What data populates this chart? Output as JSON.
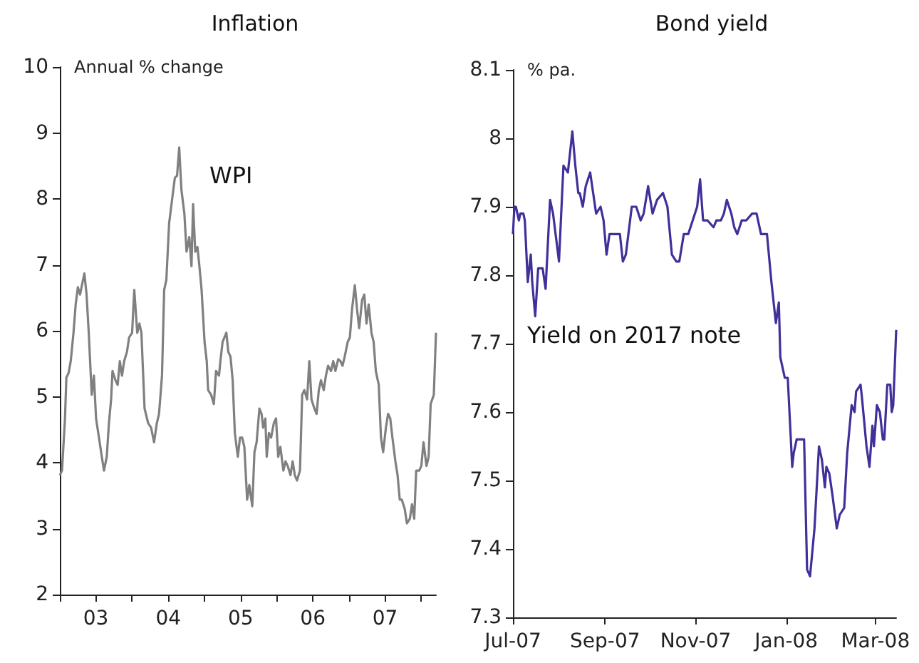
{
  "chart_data": [
    {
      "type": "line",
      "title": "Inflation",
      "ylabel": "Annual % change",
      "color": "#808080",
      "x": [
        "2003-01-01",
        "2003-01-12",
        "2003-01-27",
        "2003-02-03",
        "2003-02-14",
        "2003-02-25",
        "2003-03-11",
        "2003-03-22",
        "2003-04-02",
        "2003-04-13",
        "2003-04-28",
        "2003-05-05",
        "2003-05-16",
        "2003-05-27",
        "2003-06-11",
        "2003-06-22",
        "2003-07-03",
        "2003-07-21",
        "2003-08-01",
        "2003-08-12",
        "2003-08-26",
        "2003-09-06",
        "2003-09-17",
        "2003-09-24",
        "2003-10-09",
        "2003-10-20",
        "2003-10-31",
        "2003-11-11",
        "2003-11-22",
        "2003-12-06",
        "2003-12-17",
        "2004-01-01",
        "2004-01-12",
        "2004-01-27",
        "2004-02-07",
        "2004-02-17",
        "2004-03-04",
        "2004-03-22",
        "2004-04-06",
        "2004-04-21",
        "2004-05-05",
        "2004-05-16",
        "2004-05-31",
        "2004-06-11",
        "2004-06-22",
        "2004-07-06",
        "2004-07-21",
        "2004-08-04",
        "2004-08-15",
        "2004-08-26",
        "2004-09-06",
        "2004-09-21",
        "2004-10-02",
        "2004-10-16",
        "2004-10-27",
        "2004-11-04",
        "2004-11-15",
        "2004-11-26",
        "2004-12-06",
        "2004-12-17",
        "2005-01-01",
        "2005-01-12",
        "2005-01-19",
        "2005-02-03",
        "2005-02-17",
        "2005-02-28",
        "2005-03-15",
        "2005-03-22",
        "2005-04-02",
        "2005-04-21",
        "2005-05-01",
        "2005-05-12",
        "2005-05-23",
        "2005-06-03",
        "2005-06-18",
        "2005-06-29",
        "2005-07-10",
        "2005-07-21",
        "2005-08-04",
        "2005-08-15",
        "2005-08-30",
        "2005-09-10",
        "2005-09-21",
        "2005-10-05",
        "2005-10-16",
        "2005-10-24",
        "2005-11-04",
        "2005-11-11",
        "2005-11-22",
        "2005-12-03",
        "2005-12-17",
        "2005-12-28",
        "2006-01-08",
        "2006-01-19",
        "2006-02-03",
        "2006-02-14",
        "2006-02-25",
        "2006-03-11",
        "2006-03-22",
        "2006-04-02",
        "2006-04-13",
        "2006-04-28",
        "2006-05-09",
        "2006-05-20",
        "2006-06-03",
        "2006-06-14",
        "2006-06-25",
        "2006-07-10",
        "2006-07-21",
        "2006-08-01",
        "2006-08-12",
        "2006-08-26",
        "2006-09-06",
        "2006-09-17",
        "2006-10-02",
        "2006-10-13",
        "2006-10-24",
        "2006-11-07",
        "2006-11-18",
        "2006-11-29",
        "2006-12-10",
        "2006-12-25",
        "2007-01-05",
        "2007-01-16",
        "2007-01-30",
        "2007-02-10",
        "2007-02-21",
        "2007-03-08",
        "2007-03-19",
        "2007-03-30",
        "2007-04-10",
        "2007-04-24",
        "2007-05-05",
        "2007-05-16",
        "2007-05-31",
        "2007-06-11",
        "2007-06-22",
        "2007-07-06",
        "2007-07-17",
        "2007-07-28",
        "2007-08-08",
        "2007-08-23",
        "2007-09-03",
        "2007-09-14",
        "2007-09-24",
        "2007-10-09",
        "2007-10-20",
        "2007-11-04",
        "2007-11-15",
        "2007-11-26",
        "2007-12-06",
        "2007-12-21",
        "2008-01-01",
        "2008-01-12",
        "2008-01-27",
        "2008-02-07",
        "2008-02-17",
        "2008-03-04",
        "2008-03-15"
      ],
      "values": [
        3.81,
        3.88,
        4.67,
        5.29,
        5.36,
        5.54,
        5.97,
        6.4,
        6.66,
        6.55,
        6.77,
        6.87,
        6.55,
        5.97,
        5.03,
        5.32,
        4.67,
        4.31,
        4.09,
        3.88,
        4.09,
        4.6,
        4.96,
        5.39,
        5.25,
        5.18,
        5.54,
        5.32,
        5.54,
        5.68,
        5.9,
        5.97,
        6.62,
        5.97,
        6.11,
        5.97,
        4.82,
        4.6,
        4.53,
        4.31,
        4.6,
        4.74,
        5.32,
        6.62,
        6.77,
        7.63,
        7.99,
        8.32,
        8.35,
        8.78,
        8.14,
        7.78,
        7.2,
        7.42,
        6.98,
        7.92,
        7.2,
        7.27,
        6.98,
        6.62,
        5.83,
        5.54,
        5.1,
        5.03,
        4.89,
        5.39,
        5.32,
        5.54,
        5.83,
        5.97,
        5.68,
        5.61,
        5.25,
        4.45,
        4.09,
        4.38,
        4.38,
        4.24,
        3.44,
        3.66,
        3.34,
        4.16,
        4.31,
        4.82,
        4.74,
        4.53,
        4.67,
        4.09,
        4.45,
        4.38,
        4.6,
        4.67,
        4.09,
        4.24,
        3.88,
        4.02,
        3.95,
        3.81,
        4.02,
        3.81,
        3.73,
        3.88,
        5.03,
        5.1,
        4.96,
        5.54,
        4.96,
        4.82,
        4.74,
        5.1,
        5.25,
        5.1,
        5.32,
        5.47,
        5.39,
        5.54,
        5.39,
        5.57,
        5.54,
        5.47,
        5.61,
        5.83,
        5.9,
        6.33,
        6.69,
        6.33,
        6.04,
        6.47,
        6.55,
        6.11,
        6.4,
        5.97,
        5.83,
        5.39,
        5.18,
        4.38,
        4.16,
        4.53,
        4.74,
        4.67,
        4.38,
        4.02,
        3.81,
        3.44,
        3.44,
        3.3,
        3.08,
        3.15,
        3.37,
        3.15,
        3.88,
        3.88,
        3.95,
        4.31,
        3.95,
        4.09,
        4.89,
        5.03,
        5.97
      ],
      "xlim": [
        "2003-01-01",
        "2008-03-15"
      ],
      "xticks": [
        {
          "value": "2003-01-01",
          "label": null
        },
        {
          "value": "2004-01-01",
          "label": null
        },
        {
          "value": "2005-01-01",
          "label": null
        },
        {
          "value": "2006-01-01",
          "label": null
        },
        {
          "value": "2007-01-01",
          "label": null
        },
        {
          "value": "2008-01-01",
          "label": null
        },
        {
          "value": "2003-07-02",
          "label": "03"
        },
        {
          "value": "2004-07-02",
          "label": "04"
        },
        {
          "value": "2005-07-02",
          "label": "05"
        },
        {
          "value": "2006-07-02",
          "label": "06"
        },
        {
          "value": "2007-07-02",
          "label": "07"
        }
      ],
      "ylim": [
        2,
        10
      ],
      "yticks": [
        2,
        3,
        4,
        5,
        6,
        7,
        8,
        9,
        10
      ],
      "annotations": [
        "WPI"
      ]
    },
    {
      "type": "line",
      "title": "Bond yield",
      "ylabel": "% pa.",
      "color": "#40309a",
      "x": [
        "2007-07-01",
        "2007-07-02",
        "2007-07-03",
        "2007-07-05",
        "2007-07-06",
        "2007-07-08",
        "2007-07-09",
        "2007-07-11",
        "2007-07-13",
        "2007-07-14",
        "2007-07-16",
        "2007-07-18",
        "2007-07-21",
        "2007-07-23",
        "2007-07-26",
        "2007-07-28",
        "2007-08-01",
        "2007-08-04",
        "2007-08-07",
        "2007-08-10",
        "2007-08-12",
        "2007-08-14",
        "2007-08-15",
        "2007-08-17",
        "2007-08-19",
        "2007-08-22",
        "2007-08-26",
        "2007-08-29",
        "2007-08-31",
        "2007-09-02",
        "2007-09-04",
        "2007-09-07",
        "2007-09-11",
        "2007-09-13",
        "2007-09-15",
        "2007-09-19",
        "2007-09-22",
        "2007-09-25",
        "2007-09-27",
        "2007-09-30",
        "2007-10-03",
        "2007-10-06",
        "2007-10-10",
        "2007-10-13",
        "2007-10-16",
        "2007-10-19",
        "2007-10-21",
        "2007-10-24",
        "2007-10-27",
        "2007-10-30",
        "2007-11-02",
        "2007-11-04",
        "2007-11-06",
        "2007-11-09",
        "2007-11-13",
        "2007-11-15",
        "2007-11-18",
        "2007-11-20",
        "2007-11-22",
        "2007-11-25",
        "2007-11-27",
        "2007-11-29",
        "2007-12-02",
        "2007-12-05",
        "2007-12-09",
        "2007-12-12",
        "2007-12-15",
        "2007-12-19",
        "2007-12-22",
        "2007-12-25",
        "2007-12-27",
        "2007-12-28",
        "2007-12-31",
        "2008-01-02",
        "2008-01-05",
        "2008-01-06",
        "2008-01-08",
        "2008-01-11",
        "2008-01-13",
        "2008-01-15",
        "2008-01-17",
        "2008-01-20",
        "2008-01-23",
        "2008-01-25",
        "2008-01-27",
        "2008-01-28",
        "2008-01-30",
        "2008-02-01",
        "2008-02-04",
        "2008-02-06",
        "2008-02-09",
        "2008-02-11",
        "2008-02-14",
        "2008-02-16",
        "2008-02-17",
        "2008-02-20",
        "2008-02-21",
        "2008-02-24",
        "2008-02-26",
        "2008-02-28",
        "2008-02-29",
        "2008-03-02",
        "2008-03-04",
        "2008-03-06",
        "2008-03-07",
        "2008-03-09",
        "2008-03-11",
        "2008-03-12",
        "2008-03-13",
        "2008-03-15"
      ],
      "values": [
        7.86,
        7.9,
        7.9,
        7.88,
        7.89,
        7.89,
        7.88,
        7.79,
        7.83,
        7.79,
        7.74,
        7.81,
        7.81,
        7.78,
        7.91,
        7.89,
        7.82,
        7.96,
        7.95,
        8.01,
        7.96,
        7.92,
        7.92,
        7.9,
        7.93,
        7.95,
        7.89,
        7.9,
        7.88,
        7.83,
        7.86,
        7.86,
        7.86,
        7.82,
        7.83,
        7.9,
        7.9,
        7.88,
        7.89,
        7.93,
        7.89,
        7.91,
        7.92,
        7.9,
        7.83,
        7.82,
        7.82,
        7.86,
        7.86,
        7.88,
        7.9,
        7.94,
        7.88,
        7.88,
        7.87,
        7.88,
        7.88,
        7.89,
        7.91,
        7.89,
        7.87,
        7.86,
        7.88,
        7.88,
        7.89,
        7.89,
        7.86,
        7.86,
        7.79,
        7.73,
        7.76,
        7.68,
        7.65,
        7.65,
        7.52,
        7.54,
        7.56,
        7.56,
        7.56,
        7.37,
        7.36,
        7.43,
        7.55,
        7.53,
        7.49,
        7.52,
        7.51,
        7.48,
        7.43,
        7.45,
        7.46,
        7.54,
        7.61,
        7.6,
        7.63,
        7.64,
        7.62,
        7.55,
        7.52,
        7.58,
        7.55,
        7.61,
        7.6,
        7.56,
        7.56,
        7.64,
        7.64,
        7.6,
        7.61,
        7.72
      ],
      "xlim": [
        "2007-07-01",
        "2008-03-15"
      ],
      "xticks": [
        {
          "value": "2007-07-01",
          "label": "Jul-07"
        },
        {
          "value": "2007-09-01",
          "label": "Sep-07"
        },
        {
          "value": "2007-11-01",
          "label": "Nov-07"
        },
        {
          "value": "2008-01-01",
          "label": "Jan-08"
        },
        {
          "value": "2008-03-01",
          "label": "Mar-08"
        }
      ],
      "ylim": [
        7.3,
        8.1
      ],
      "yticks": [
        7.3,
        7.4,
        7.5,
        7.6,
        7.7,
        7.8,
        7.9,
        8,
        8.1
      ],
      "annotations": [
        "Yield on 2017 note"
      ]
    }
  ]
}
